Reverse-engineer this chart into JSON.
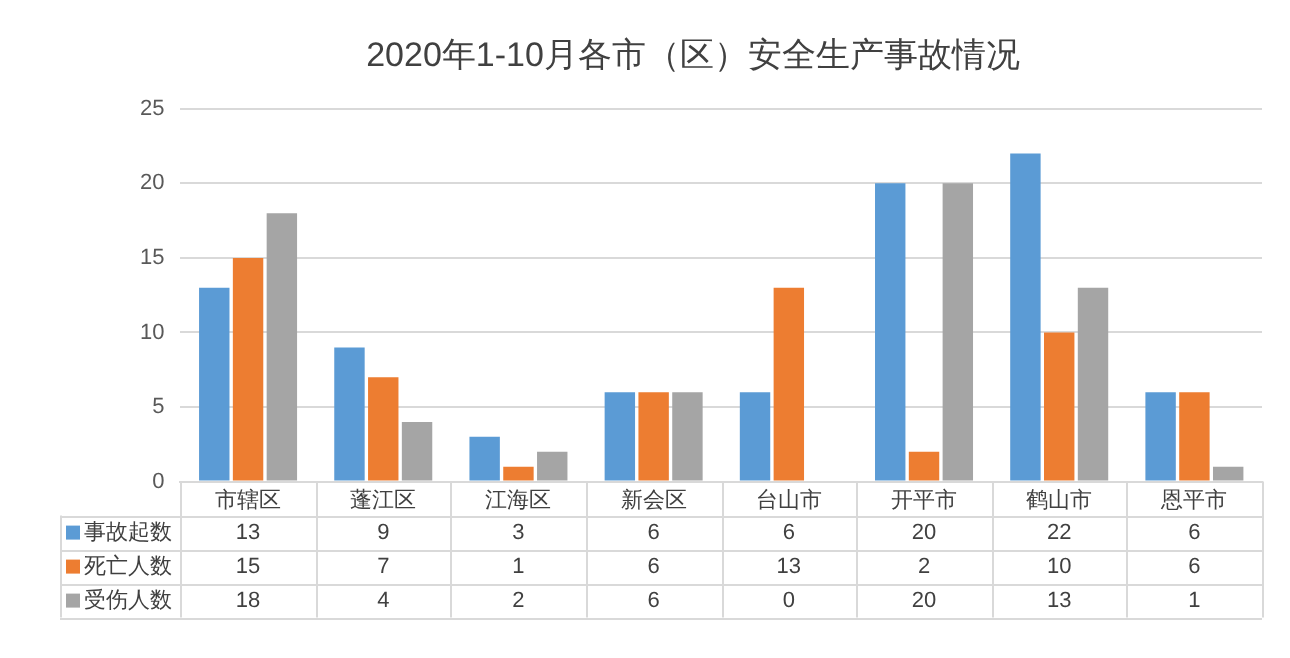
{
  "chart_data": {
    "type": "bar",
    "title": "2020年1-10月各市（区）安全生产事故情况",
    "categories": [
      "市辖区",
      "蓬江区",
      "江海区",
      "新会区",
      "台山市",
      "开平市",
      "鹤山市",
      "恩平市"
    ],
    "series": [
      {
        "name": "事故起数",
        "color": "#5b9bd5",
        "values": [
          13,
          9,
          3,
          6,
          6,
          20,
          22,
          6
        ]
      },
      {
        "name": "死亡人数",
        "color": "#ed7d31",
        "values": [
          15,
          7,
          1,
          6,
          13,
          2,
          10,
          6
        ]
      },
      {
        "name": "受伤人数",
        "color": "#a5a5a5",
        "values": [
          18,
          4,
          2,
          6,
          0,
          20,
          13,
          1
        ]
      }
    ],
    "ylim": [
      0,
      25
    ],
    "yticks": [
      0,
      5,
      10,
      15,
      20,
      25
    ],
    "grid": "y",
    "legend": "bottom left",
    "data_labels": true
  }
}
